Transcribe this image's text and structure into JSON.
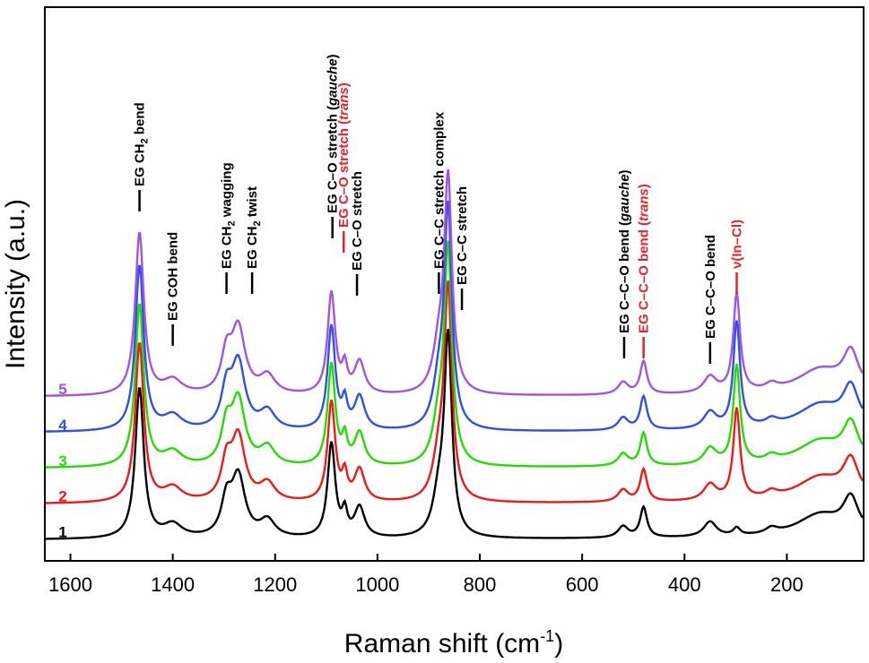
{
  "chart_data": {
    "type": "line",
    "title": "",
    "xlabel": "Raman shift (cm",
    "xlabel_sup": "-1",
    "xlabel_end": ")",
    "ylabel": "Intensity (a.u.)",
    "x_reversed": true,
    "xlim": [
      1650,
      50
    ],
    "x_ticks": [
      {
        "value": 1600,
        "label": "1600"
      },
      {
        "value": 1400,
        "label": "1400"
      },
      {
        "value": 1200,
        "label": "1200"
      },
      {
        "value": 1000,
        "label": "1000"
      },
      {
        "value": 800,
        "label": "800"
      },
      {
        "value": 600,
        "label": "600"
      },
      {
        "value": 400,
        "label": "400"
      },
      {
        "value": 200,
        "label": "200"
      }
    ],
    "ylim": [
      0,
      1
    ],
    "grid": false,
    "offset_between_series": 0.095,
    "peaks": [
      {
        "center": 1465,
        "width": 10,
        "height": 0.4
      },
      {
        "center": 1400,
        "width": 22,
        "height": 0.035
      },
      {
        "center": 1295,
        "width": 12,
        "height": 0.09
      },
      {
        "center": 1272,
        "width": 16,
        "height": 0.16
      },
      {
        "center": 1215,
        "width": 18,
        "height": 0.045
      },
      {
        "center": 1090,
        "width": 9,
        "height": 0.25
      },
      {
        "center": 1064,
        "width": 6,
        "height": 0.06
      },
      {
        "center": 1035,
        "width": 12,
        "height": 0.08
      },
      {
        "center": 880,
        "width": 14,
        "height": 0.1
      },
      {
        "center": 862,
        "width": 9,
        "height": 0.52
      },
      {
        "center": 520,
        "width": 12,
        "height": 0.03
      },
      {
        "center": 480,
        "width": 8,
        "height": 0.08
      },
      {
        "center": 350,
        "width": 15,
        "height": 0.04
      },
      {
        "center": 298,
        "width": 8,
        "height": 0.02
      },
      {
        "center": 230,
        "width": 14,
        "height": 0.015
      },
      {
        "center": 135,
        "width": 55,
        "height": 0.06
      },
      {
        "center": 75,
        "width": 18,
        "height": 0.09
      }
    ],
    "series": [
      {
        "name": "1",
        "color": "#000000",
        "offset": 0.0,
        "in_cl": 0.0,
        "scale": 1.0
      },
      {
        "name": "2",
        "color": "#f01818",
        "offset": 0.095,
        "in_cl": 0.22,
        "scale": 1.06
      },
      {
        "name": "3",
        "color": "#22dd00",
        "offset": 0.19,
        "in_cl": 0.24,
        "scale": 1.08
      },
      {
        "name": "4",
        "color": "#2f4fe8",
        "offset": 0.285,
        "in_cl": 0.26,
        "scale": 1.1
      },
      {
        "name": "5",
        "color": "#9e55e6",
        "offset": 0.38,
        "in_cl": 0.24,
        "scale": 1.08
      }
    ],
    "annotations": [
      {
        "x": 1465,
        "text": "EG CH",
        "sub": "2",
        "tail": " bend",
        "italic": "",
        "color": "#000000"
      },
      {
        "x": 1400,
        "text": "EG COH bend",
        "sub": "",
        "tail": "",
        "italic": "",
        "color": "#000000"
      },
      {
        "x": 1295,
        "text": "EG CH",
        "sub": "2",
        "tail": " wagging",
        "italic": "",
        "color": "#000000"
      },
      {
        "x": 1245,
        "text": "EG CH",
        "sub": "2",
        "tail": " twist",
        "italic": "",
        "color": "#000000"
      },
      {
        "x": 1088,
        "text": "EG C–O stretch (",
        "sub": "",
        "tail": ")",
        "italic": "gauche",
        "color": "#000000"
      },
      {
        "x": 1066,
        "text": "EG C–O stretch (",
        "sub": "",
        "tail": ")",
        "italic": "trans",
        "color": "#e8222a"
      },
      {
        "x": 1040,
        "text": "EG C–O stretch",
        "sub": "",
        "tail": "",
        "italic": "",
        "color": "#000000"
      },
      {
        "x": 880,
        "text": "EG C–C stretch complex",
        "sub": "",
        "tail": "",
        "italic": "",
        "color": "#000000"
      },
      {
        "x": 835,
        "text": "EG C–C stretch",
        "sub": "",
        "tail": "",
        "italic": "",
        "color": "#000000"
      },
      {
        "x": 518,
        "text": "EG C–C–O bend (",
        "sub": "",
        "tail": ")",
        "italic": "gauche",
        "color": "#000000"
      },
      {
        "x": 480,
        "text": "EG C–C–O bend (",
        "sub": "",
        "tail": ")",
        "italic": "trans",
        "color": "#e8222a"
      },
      {
        "x": 350,
        "text": "EG C–C–O bend",
        "sub": "",
        "tail": "",
        "italic": "",
        "color": "#000000"
      },
      {
        "x": 298,
        "text": "ν(In–Cl)",
        "sub": "",
        "tail": "",
        "italic": "",
        "color": "#e8222a"
      }
    ]
  }
}
